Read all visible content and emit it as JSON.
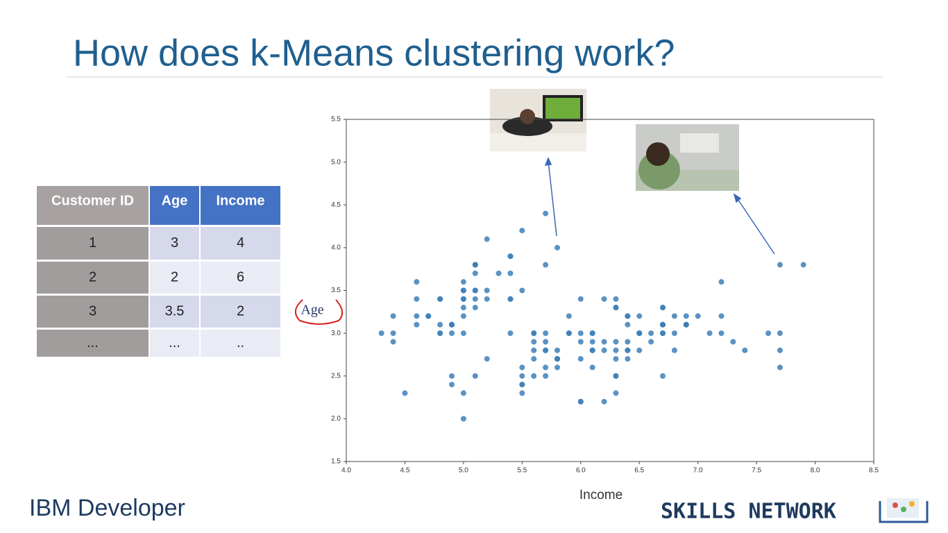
{
  "title": "How does k-Means clustering work?",
  "table": {
    "headers": [
      "Customer ID",
      "Age",
      "Income"
    ],
    "rows": [
      [
        "1",
        "3",
        "4"
      ],
      [
        "2",
        "2",
        "6"
      ],
      [
        "3",
        "3.5",
        "2"
      ],
      [
        "...",
        "...",
        ".."
      ]
    ]
  },
  "chart_data": {
    "type": "scatter",
    "xlabel": "Income",
    "ylabel": "Age",
    "color": "#3d7fb8",
    "xlim": [
      4.0,
      8.5
    ],
    "ylim": [
      1.5,
      5.5
    ],
    "xticks": [
      {
        "value": 4,
        "label": "4.0"
      },
      4.5,
      {
        "value": 5,
        "label": "5.0"
      },
      5.5,
      {
        "value": 6,
        "label": "6.0"
      },
      6.5,
      {
        "value": 7,
        "label": "7.0"
      },
      7.5,
      {
        "value": 8,
        "label": "8.0"
      },
      8.5
    ],
    "yticks": [
      1.5,
      {
        "value": 2,
        "label": "2.0"
      },
      2.5,
      {
        "value": 3,
        "label": "3.0"
      },
      3.5,
      {
        "value": 4,
        "label": "4.0"
      },
      4.5,
      {
        "value": 5,
        "label": "5.0"
      },
      5.5
    ],
    "x": [
      5.1,
      4.9,
      4.7,
      4.6,
      5.0,
      5.4,
      4.6,
      5.0,
      4.4,
      4.9,
      5.4,
      4.8,
      4.8,
      4.3,
      5.8,
      5.7,
      5.4,
      5.1,
      5.7,
      5.1,
      5.4,
      5.1,
      4.6,
      5.1,
      4.8,
      5.0,
      5.0,
      5.2,
      5.2,
      4.7,
      4.8,
      5.4,
      5.2,
      5.5,
      4.9,
      5.0,
      5.5,
      4.9,
      4.4,
      5.1,
      5.0,
      4.5,
      4.4,
      5.0,
      5.1,
      4.8,
      5.1,
      4.6,
      5.3,
      5.0,
      7.0,
      6.4,
      6.9,
      5.5,
      6.5,
      5.7,
      6.3,
      4.9,
      6.6,
      5.2,
      5.0,
      5.9,
      6.0,
      6.1,
      5.6,
      6.7,
      5.6,
      5.8,
      6.2,
      5.6,
      5.9,
      6.1,
      6.3,
      6.1,
      6.4,
      6.6,
      6.8,
      6.7,
      6.0,
      5.7,
      5.5,
      5.5,
      5.8,
      6.0,
      5.4,
      6.0,
      6.7,
      6.3,
      5.6,
      5.5,
      5.5,
      6.1,
      5.8,
      5.0,
      5.6,
      5.7,
      5.7,
      6.2,
      5.1,
      5.7,
      6.3,
      5.8,
      7.1,
      6.3,
      6.5,
      7.6,
      4.9,
      7.3,
      6.7,
      7.2,
      6.5,
      6.4,
      6.8,
      5.7,
      5.8,
      6.4,
      6.5,
      7.7,
      7.7,
      6.0,
      6.9,
      5.6,
      7.7,
      6.3,
      6.7,
      7.2,
      6.2,
      6.1,
      6.4,
      7.2,
      7.4,
      7.9,
      6.4,
      6.3,
      6.1,
      7.7,
      6.3,
      6.4,
      6.0,
      6.9,
      6.7,
      6.9,
      5.8,
      6.8,
      6.7,
      6.7,
      6.3,
      6.5,
      6.2,
      5.9
    ],
    "values": [
      3.5,
      3.0,
      3.2,
      3.1,
      3.6,
      3.9,
      3.4,
      3.4,
      2.9,
      3.1,
      3.7,
      3.4,
      3.0,
      3.0,
      4.0,
      4.4,
      3.9,
      3.5,
      3.8,
      3.8,
      3.4,
      3.7,
      3.6,
      3.3,
      3.4,
      3.0,
      3.4,
      3.5,
      3.4,
      3.2,
      3.1,
      3.4,
      4.1,
      4.2,
      3.1,
      3.2,
      3.5,
      3.1,
      3.0,
      3.4,
      3.5,
      2.3,
      3.2,
      3.5,
      3.8,
      3.0,
      3.8,
      3.2,
      3.7,
      3.3,
      3.2,
      3.2,
      3.1,
      2.3,
      2.8,
      2.8,
      3.3,
      2.4,
      2.9,
      2.7,
      2.0,
      3.0,
      2.2,
      2.9,
      2.9,
      3.1,
      3.0,
      2.7,
      2.2,
      2.5,
      3.2,
      2.8,
      2.5,
      2.8,
      2.9,
      3.0,
      2.8,
      3.0,
      2.9,
      2.6,
      2.4,
      2.4,
      2.7,
      2.7,
      3.0,
      3.4,
      3.1,
      2.3,
      3.0,
      2.5,
      2.6,
      3.0,
      2.6,
      2.3,
      2.7,
      3.0,
      2.9,
      2.9,
      2.5,
      2.8,
      3.3,
      2.7,
      3.0,
      2.9,
      3.0,
      3.0,
      2.5,
      2.9,
      2.5,
      3.6,
      3.2,
      2.7,
      3.0,
      2.5,
      2.8,
      3.2,
      3.0,
      3.8,
      2.6,
      2.2,
      3.2,
      2.8,
      2.8,
      2.7,
      3.3,
      3.2,
      2.8,
      3.0,
      2.8,
      3.0,
      2.8,
      3.8,
      2.8,
      2.8,
      2.6,
      3.0,
      3.4,
      3.1,
      3.0,
      3.1,
      3.1,
      3.1,
      2.7,
      3.2,
      3.3,
      3.0,
      2.5,
      3.0,
      3.4,
      3.0
    ]
  },
  "footer": {
    "left": "IBM Developer",
    "right": "SKILLS NETWORK"
  }
}
